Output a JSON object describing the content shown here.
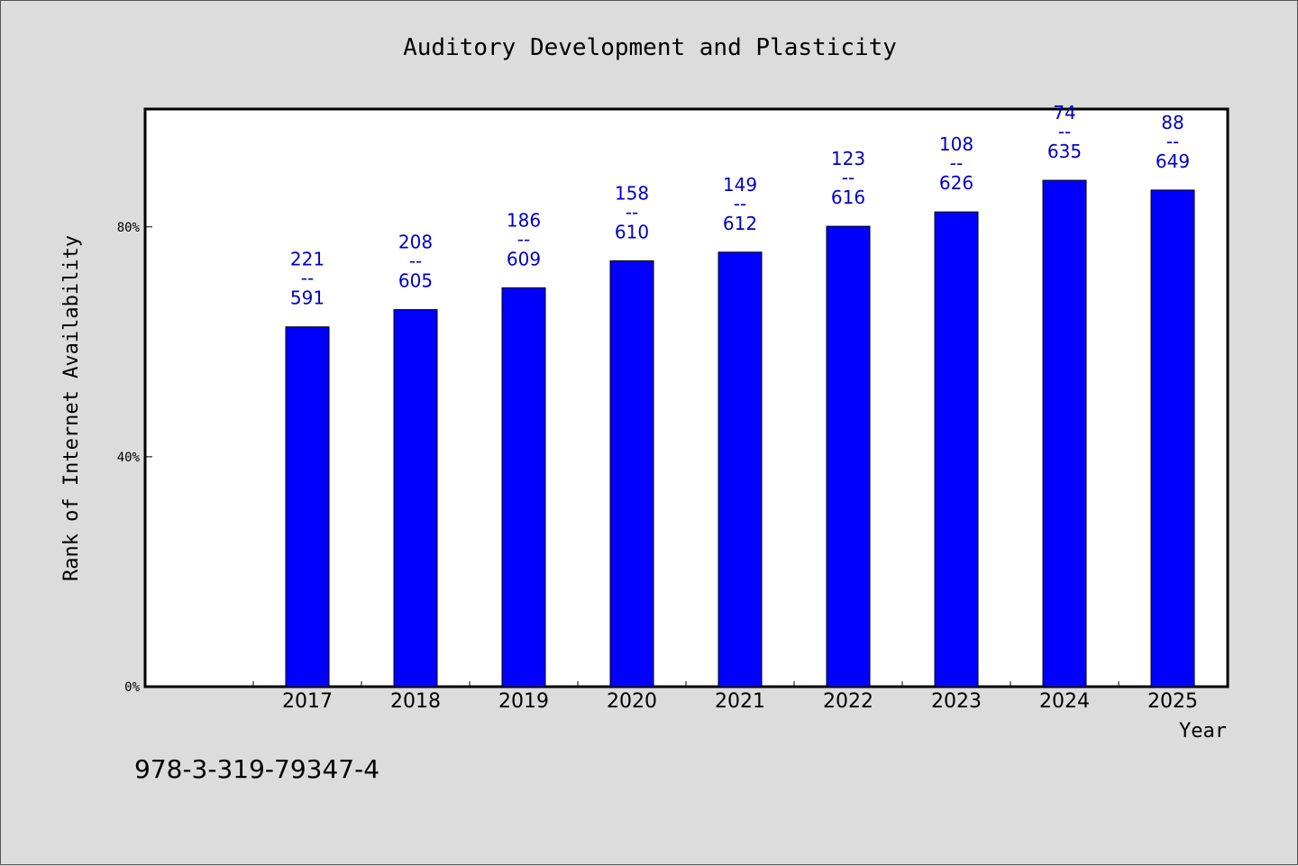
{
  "chart_data": {
    "type": "bar",
    "title": "Auditory Development and Plasticity",
    "xlabel": "Year",
    "ylabel": "Rank of Internet Availability",
    "categories": [
      "2017",
      "2018",
      "2019",
      "2020",
      "2021",
      "2022",
      "2023",
      "2024",
      "2025"
    ],
    "values": [
      62.6,
      65.6,
      69.4,
      74.1,
      75.6,
      80.1,
      82.6,
      88.1,
      86.4
    ],
    "bar_labels": [
      {
        "top": "221",
        "sep": "--",
        "bottom": "591"
      },
      {
        "top": "208",
        "sep": "--",
        "bottom": "605"
      },
      {
        "top": "186",
        "sep": "--",
        "bottom": "609"
      },
      {
        "top": "158",
        "sep": "--",
        "bottom": "610"
      },
      {
        "top": "149",
        "sep": "--",
        "bottom": "612"
      },
      {
        "top": "123",
        "sep": "--",
        "bottom": "616"
      },
      {
        "top": "108",
        "sep": "--",
        "bottom": "626"
      },
      {
        "top": "74",
        "sep": "--",
        "bottom": "635"
      },
      {
        "top": "88",
        "sep": "--",
        "bottom": "649"
      }
    ],
    "yticks": [
      {
        "value": 0,
        "label": "0%"
      },
      {
        "value": 40,
        "label": "40%"
      },
      {
        "value": 80,
        "label": "80%"
      }
    ],
    "ylim": [
      0,
      100.5
    ],
    "grid": false,
    "legend": "none",
    "colors": {
      "bar": "#0000ff",
      "label": "#0000c8",
      "background": "#dcdcdc",
      "plot_area": "#ffffff"
    }
  },
  "footer_text": "978-3-319-79347-4"
}
